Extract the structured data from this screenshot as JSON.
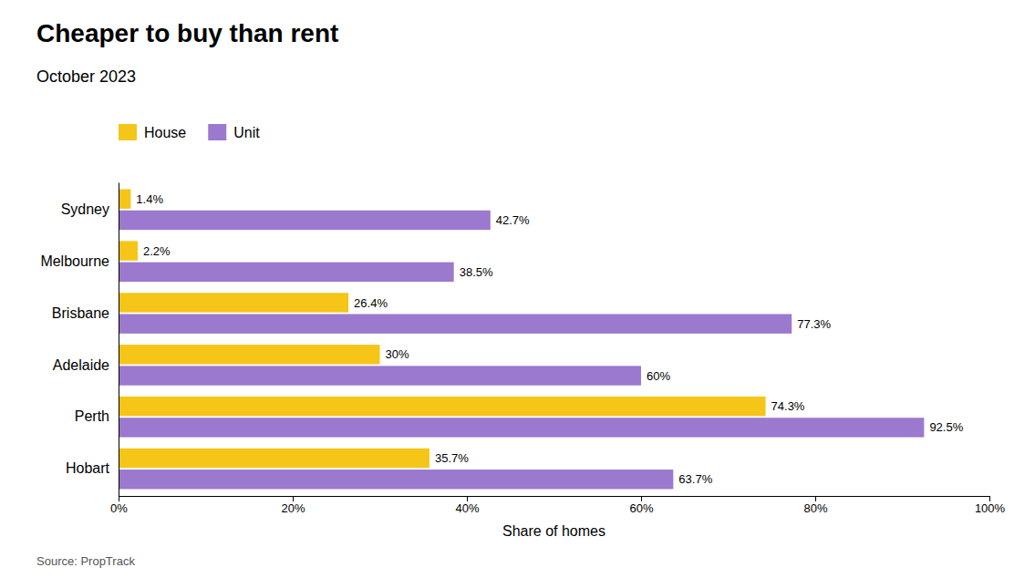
{
  "chart_data": {
    "type": "bar",
    "orientation": "horizontal",
    "title": "Cheaper to buy than rent",
    "subtitle": "October 2023",
    "annotations": [
      "Source: PropTrack"
    ],
    "xlabel": "Share of homes",
    "categories": [
      "Sydney",
      "Melbourne",
      "Brisbane",
      "Adelaide",
      "Perth",
      "Hobart"
    ],
    "series": [
      {
        "name": "House",
        "color": "#F5C518",
        "values": [
          1.4,
          2.2,
          26.4,
          30.0,
          74.3,
          35.7
        ],
        "value_labels": [
          "1.4%",
          "2.2%",
          "26.4%",
          "30%",
          "74.3%",
          "35.7%"
        ]
      },
      {
        "name": "Unit",
        "color": "#9B79CF",
        "values": [
          42.7,
          38.5,
          77.3,
          60.0,
          92.5,
          63.7
        ],
        "value_labels": [
          "42.7%",
          "38.5%",
          "77.3%",
          "60%",
          "92.5%",
          "63.7%"
        ]
      }
    ],
    "xlim": [
      0,
      100
    ],
    "xticks": [
      {
        "value": 0,
        "label": "0%"
      },
      {
        "value": 20,
        "label": "20%"
      },
      {
        "value": 40,
        "label": "40%"
      },
      {
        "value": 60,
        "label": "60%"
      },
      {
        "value": 80,
        "label": "80%"
      },
      {
        "value": 100,
        "label": "100%"
      }
    ],
    "data_labels": true,
    "legend": "upper left",
    "grid": false
  }
}
